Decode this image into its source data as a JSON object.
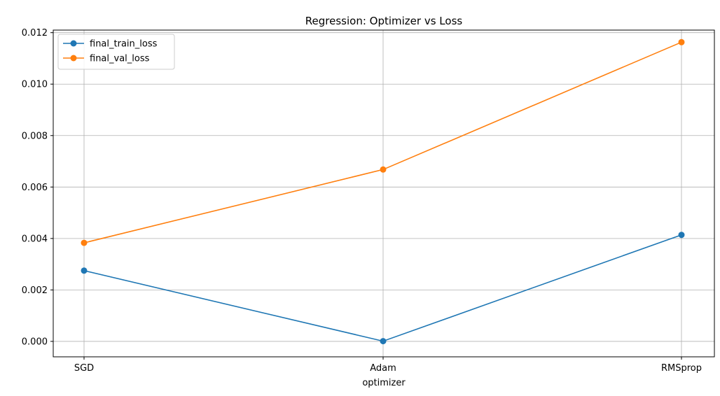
{
  "chart_data": {
    "type": "line",
    "title": "Regression: Optimizer vs Loss",
    "xlabel": "optimizer",
    "ylabel": "",
    "categories": [
      "SGD",
      "Adam",
      "RMSprop"
    ],
    "series": [
      {
        "name": "final_train_loss",
        "color": "#1f77b4",
        "values": [
          0.00275,
          1e-05,
          0.00414
        ]
      },
      {
        "name": "final_val_loss",
        "color": "#ff7f0e",
        "values": [
          0.00383,
          0.00668,
          0.01163
        ]
      }
    ],
    "ylim": [
      -0.0006,
      0.0121
    ],
    "yticks": [
      "0.000",
      "0.002",
      "0.004",
      "0.006",
      "0.008",
      "0.010",
      "0.012"
    ],
    "grid": true,
    "legend_position": "top-left"
  }
}
